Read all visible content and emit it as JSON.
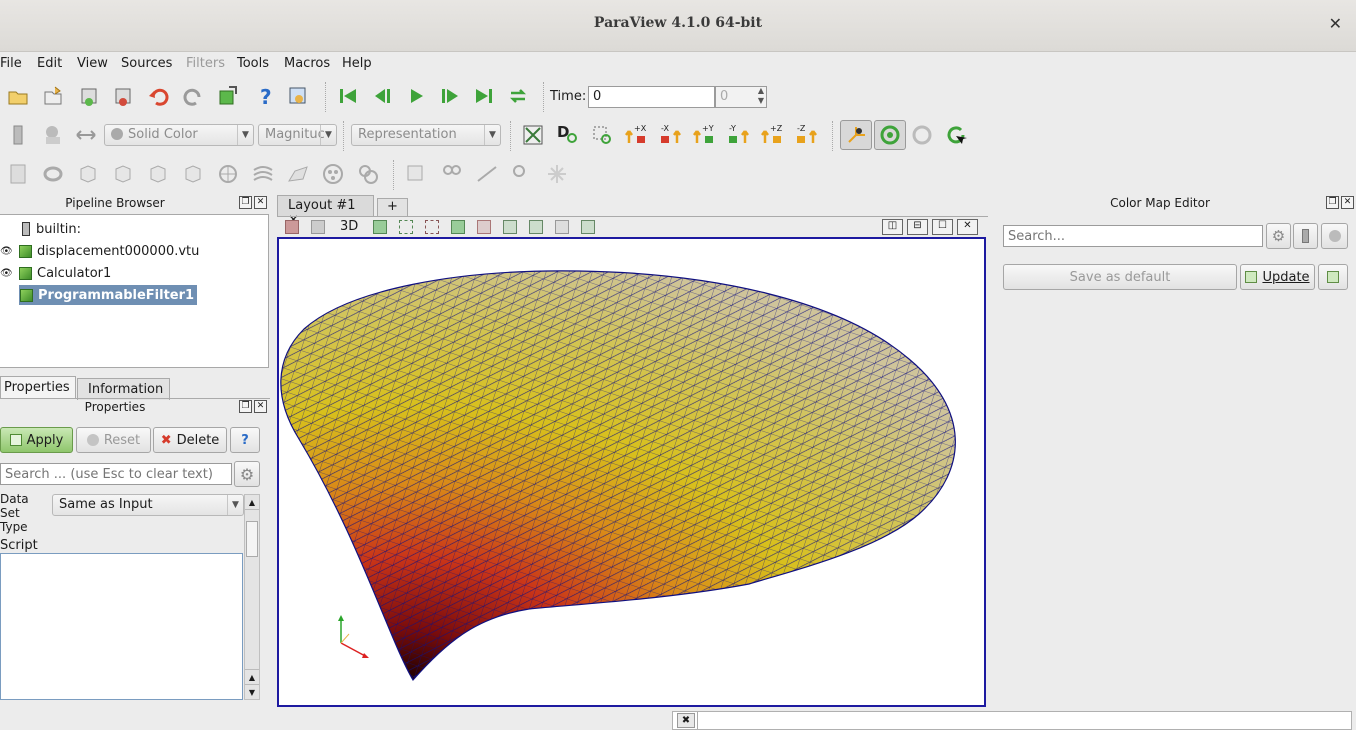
{
  "window": {
    "title": "ParaView 4.1.0 64-bit",
    "close_glyph": "✕"
  },
  "menu": [
    {
      "label": "File",
      "enabled": true
    },
    {
      "label": "Edit",
      "enabled": true
    },
    {
      "label": "View",
      "enabled": true
    },
    {
      "label": "Sources",
      "enabled": true
    },
    {
      "label": "Filters",
      "enabled": false
    },
    {
      "label": "Tools",
      "enabled": true
    },
    {
      "label": "Macros",
      "enabled": true
    },
    {
      "label": "Help",
      "enabled": true
    }
  ],
  "toolbar_time": {
    "label": "Time:",
    "value": "0",
    "index": "0"
  },
  "toolbar_display": {
    "color_by": "Solid Color",
    "component": "Magnituc",
    "representation": "Representation",
    "view_buttons": [
      "+X",
      "-X",
      "+Y",
      "-Y",
      "+Z",
      "-Z"
    ]
  },
  "pipeline": {
    "title": "Pipeline Browser",
    "items": [
      {
        "label": "builtin:"
      },
      {
        "label": "displacement000000.vtu"
      },
      {
        "label": "Calculator1"
      },
      {
        "label": "ProgrammableFilter1"
      }
    ]
  },
  "properties": {
    "tabs": [
      "Properties",
      "Information"
    ],
    "title": "Properties",
    "apply": "Apply",
    "reset": "Reset",
    "delete": "Delete",
    "help": "?",
    "search_placeholder": "Search ... (use Esc to clear text)",
    "dataset_label_1": "Data",
    "dataset_label_2": "Set",
    "dataset_label_3": "Type",
    "dataset_value": "Same as Input",
    "script_label": "Script"
  },
  "layout": {
    "tab": "Layout #1",
    "add_tab": "+",
    "view_mode": "3D"
  },
  "color_map": {
    "title": "Color Map Editor",
    "search_placeholder": "Search...",
    "save_default": "Save as default",
    "update": "Update"
  },
  "colors": {
    "mesh_line": "#101080",
    "frame": "#1d1aa0",
    "accent_selection": "#6f8fb3"
  }
}
